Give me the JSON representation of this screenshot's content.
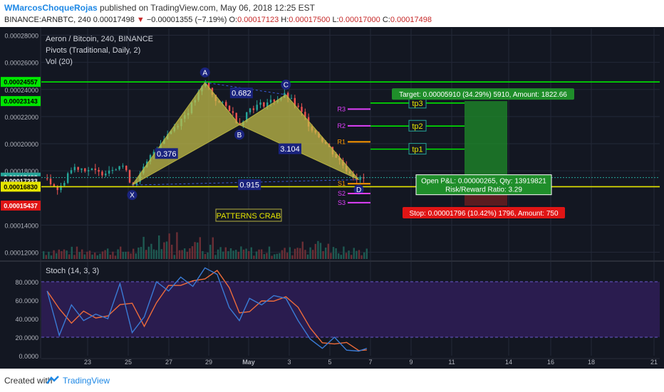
{
  "header": {
    "author": "WMarcosChoqueRojas",
    "published": "published on TradingView.com, May 06, 2018 12:25 EST",
    "symbol": "BINANCE:ARNBTC, 240",
    "last": "0.00017498",
    "change": "−0.00001355 (−7.19%)",
    "ohlc_o_label": "O:",
    "ohlc_o": "0.00017123",
    "ohlc_h_label": "H:",
    "ohlc_h": "0.00017500",
    "ohlc_l_label": "L:",
    "ohlc_l": "0.00017000",
    "ohlc_c_label": "C:",
    "ohlc_c": "0.00017498"
  },
  "legend": {
    "line1": "Aeron / Bitcoin, 240, BINANCE",
    "line2": "Pivots (Traditional, Daily, 2)",
    "line3": "Vol (20)"
  },
  "colors": {
    "background": "#131722",
    "grid": "#232838",
    "up": "#26a69a",
    "down": "#ef5350",
    "pattern_fill": "#c8c24a",
    "green_line": "#00e600",
    "yellow_line": "#e5e500",
    "stoch_bg": "#2a1c4f",
    "stoch_k": "#3a7bd5",
    "stoch_d": "#ef6c3a",
    "target_box": "#1f8e2a",
    "stop_box": "#e01515"
  },
  "chart_data": {
    "type": "candlestick",
    "x_tick_labels": [
      "23",
      "25",
      "27",
      "29",
      "May",
      "3",
      "5",
      "7",
      "9",
      "11",
      "14",
      "16",
      "18",
      "21"
    ],
    "y_tick_labels": [
      "0.00028000",
      "0.00026000",
      "0.00024000",
      "0.00022000",
      "0.00020000",
      "0.00018000",
      "0.00014000",
      "0.00012000"
    ],
    "ylim": [
      0.000115,
      0.000285
    ],
    "price_tags": [
      {
        "label": "0.00024557",
        "value": 0.00024557,
        "color": "#00e600",
        "text_color": "#000000"
      },
      {
        "label": "0.00023143",
        "value": 0.00023143,
        "color": "#00e600",
        "text_color": "#000000"
      },
      {
        "label": "0.00017498",
        "value": 0.00017498,
        "color": "#26a69a",
        "text_color": "#ffffff"
      },
      {
        "label": "0.00017233",
        "value": 0.00017233,
        "color": "#131722",
        "text_color": "#ffffff"
      },
      {
        "label": "0.00016830",
        "value": 0.0001683,
        "color": "#e5e500",
        "text_color": "#000000"
      },
      {
        "label": "0.00015437",
        "value": 0.00015437,
        "color": "#e01515",
        "text_color": "#ffffff"
      }
    ],
    "pattern": {
      "name": "PATTERNS CRAB",
      "points": [
        {
          "label": "X",
          "x": 25.2,
          "y": 0.0001695
        },
        {
          "label": "A",
          "x": 28.8,
          "y": 0.0002452
        },
        {
          "label": "B",
          "x": 30.5,
          "y": 0.000214
        },
        {
          "label": "C",
          "x": 32.8,
          "y": 0.0002362
        },
        {
          "label": "D",
          "x": 36.4,
          "y": 0.0001735
        }
      ],
      "ratios": [
        {
          "label": "0.376",
          "x": 26.9,
          "y": 0.0001925
        },
        {
          "label": "0.682",
          "x": 30.6,
          "y": 0.0002372
        },
        {
          "label": "3.104",
          "x": 33.0,
          "y": 0.000196
        },
        {
          "label": "0.915",
          "x": 31.0,
          "y": 0.0001695
        }
      ]
    },
    "pivots": [
      {
        "label": "R3",
        "value": 0.0002255,
        "color": "#e040fb"
      },
      {
        "label": "R2",
        "value": 0.0002132,
        "color": "#e040fb"
      },
      {
        "label": "R1",
        "value": 0.0002014,
        "color": "#ff9800"
      },
      {
        "label": "S1",
        "value": 0.0001705,
        "color": "#ff9800"
      },
      {
        "label": "S2",
        "value": 0.0001633,
        "color": "#e040fb"
      },
      {
        "label": "S3",
        "value": 0.0001565,
        "color": "#e040fb"
      }
    ],
    "targets": [
      {
        "label": "tp3",
        "value": 0.00023
      },
      {
        "label": "tp2",
        "value": 0.000213
      },
      {
        "label": "tp1",
        "value": 0.000196
      }
    ],
    "position": {
      "target_text": "Target: 0.00005910 (34.29%) 5910, Amount: 1822.66",
      "pnl_text": "Open P&L: 0.00000265, Qty: 13919821",
      "rr_text": "Risk/Reward Ratio: 3.29",
      "stop_text": "Stop: 0.00001796 (10.42%) 1796, Amount: 750"
    },
    "stoch": {
      "label": "Stoch (14, 3, 3)",
      "ylim": [
        0,
        100
      ],
      "y_tick_labels": [
        "80.0000",
        "60.0000",
        "40.0000",
        "20.0000",
        "0.0000"
      ]
    }
  },
  "footer": {
    "created": "Created with",
    "brand": "TradingView"
  }
}
